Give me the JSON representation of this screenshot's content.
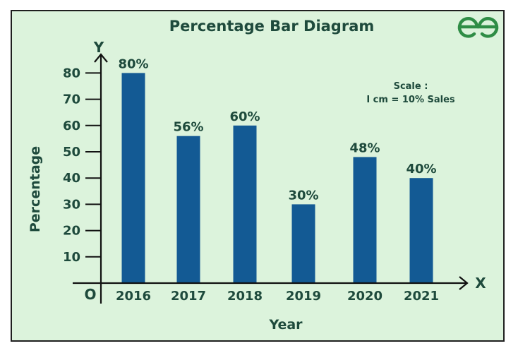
{
  "colors": {
    "background": "#dcf3dc",
    "bar": "#135a94",
    "text": "#1e4a3c",
    "logo": "#2f8d46"
  },
  "logo": {
    "name": "geeksforgeeks-logo",
    "text": "GG"
  },
  "scale": {
    "line1": "Scale :",
    "line2": "I cm = 10% Sales"
  },
  "axes": {
    "origin": "O",
    "x_letter": "X",
    "y_letter": "Y"
  },
  "chart_data": {
    "type": "bar",
    "title": "Percentage Bar Diagram",
    "xlabel": "Year",
    "ylabel": "Percentage",
    "categories": [
      "2016",
      "2017",
      "2018",
      "2019",
      "2020",
      "2021"
    ],
    "values": [
      80,
      56,
      60,
      30,
      48,
      40
    ],
    "data_labels": [
      "80%",
      "56%",
      "60%",
      "30%",
      "48%",
      "40%"
    ],
    "yticks": [
      10,
      20,
      30,
      40,
      50,
      60,
      70,
      80
    ],
    "ylim": [
      0,
      85
    ],
    "grid": false,
    "legend": "none"
  }
}
